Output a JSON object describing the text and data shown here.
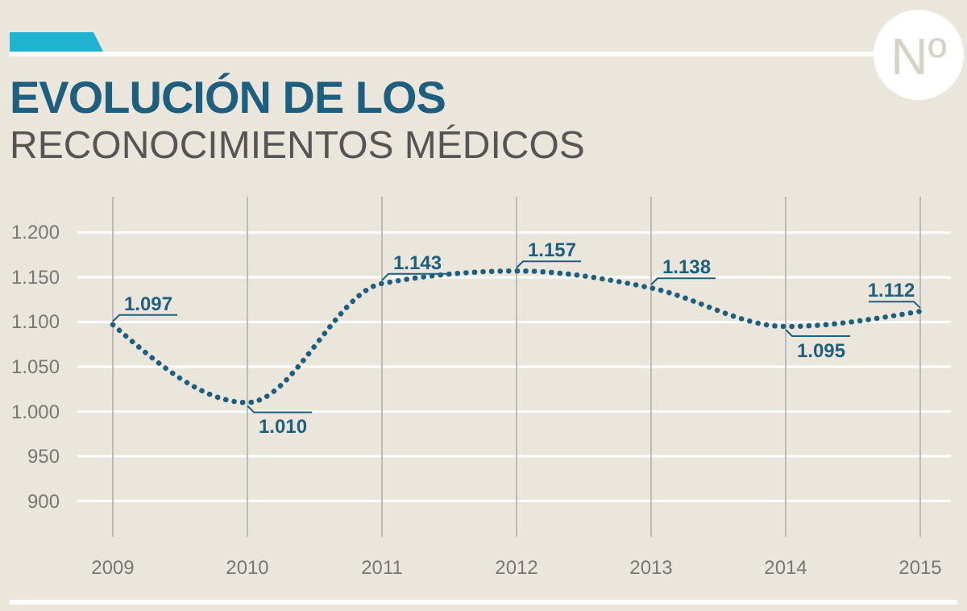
{
  "chart_data": {
    "type": "line",
    "title": "EVOLUCIÓN DE LOS",
    "subtitle": "RECONOCIMIENTOS MÉDICOS",
    "categories": [
      "2009",
      "2010",
      "2011",
      "2012",
      "2013",
      "2014",
      "2015"
    ],
    "series": [
      {
        "color": "#1e5f80",
        "values": [
          1097,
          1010,
          1143,
          1157,
          1138,
          1095,
          1112
        ],
        "value_labels": [
          "1.097",
          "1.010",
          "1.143",
          "1.157",
          "1.138",
          "1.095",
          "1.112"
        ]
      }
    ],
    "ylim": [
      860,
      1240
    ],
    "yticks": [
      {
        "value": 900,
        "label": "900"
      },
      {
        "value": 950,
        "label": "950"
      },
      {
        "value": 1000,
        "label": "1.000"
      },
      {
        "value": 1050,
        "label": "1.050"
      },
      {
        "value": 1100,
        "label": "1.100"
      },
      {
        "value": 1150,
        "label": "1.150"
      },
      {
        "value": 1200,
        "label": "1.200"
      }
    ],
    "grid": true,
    "marker": "none",
    "line_style": "dotted",
    "annotations": [
      "Nº"
    ]
  }
}
